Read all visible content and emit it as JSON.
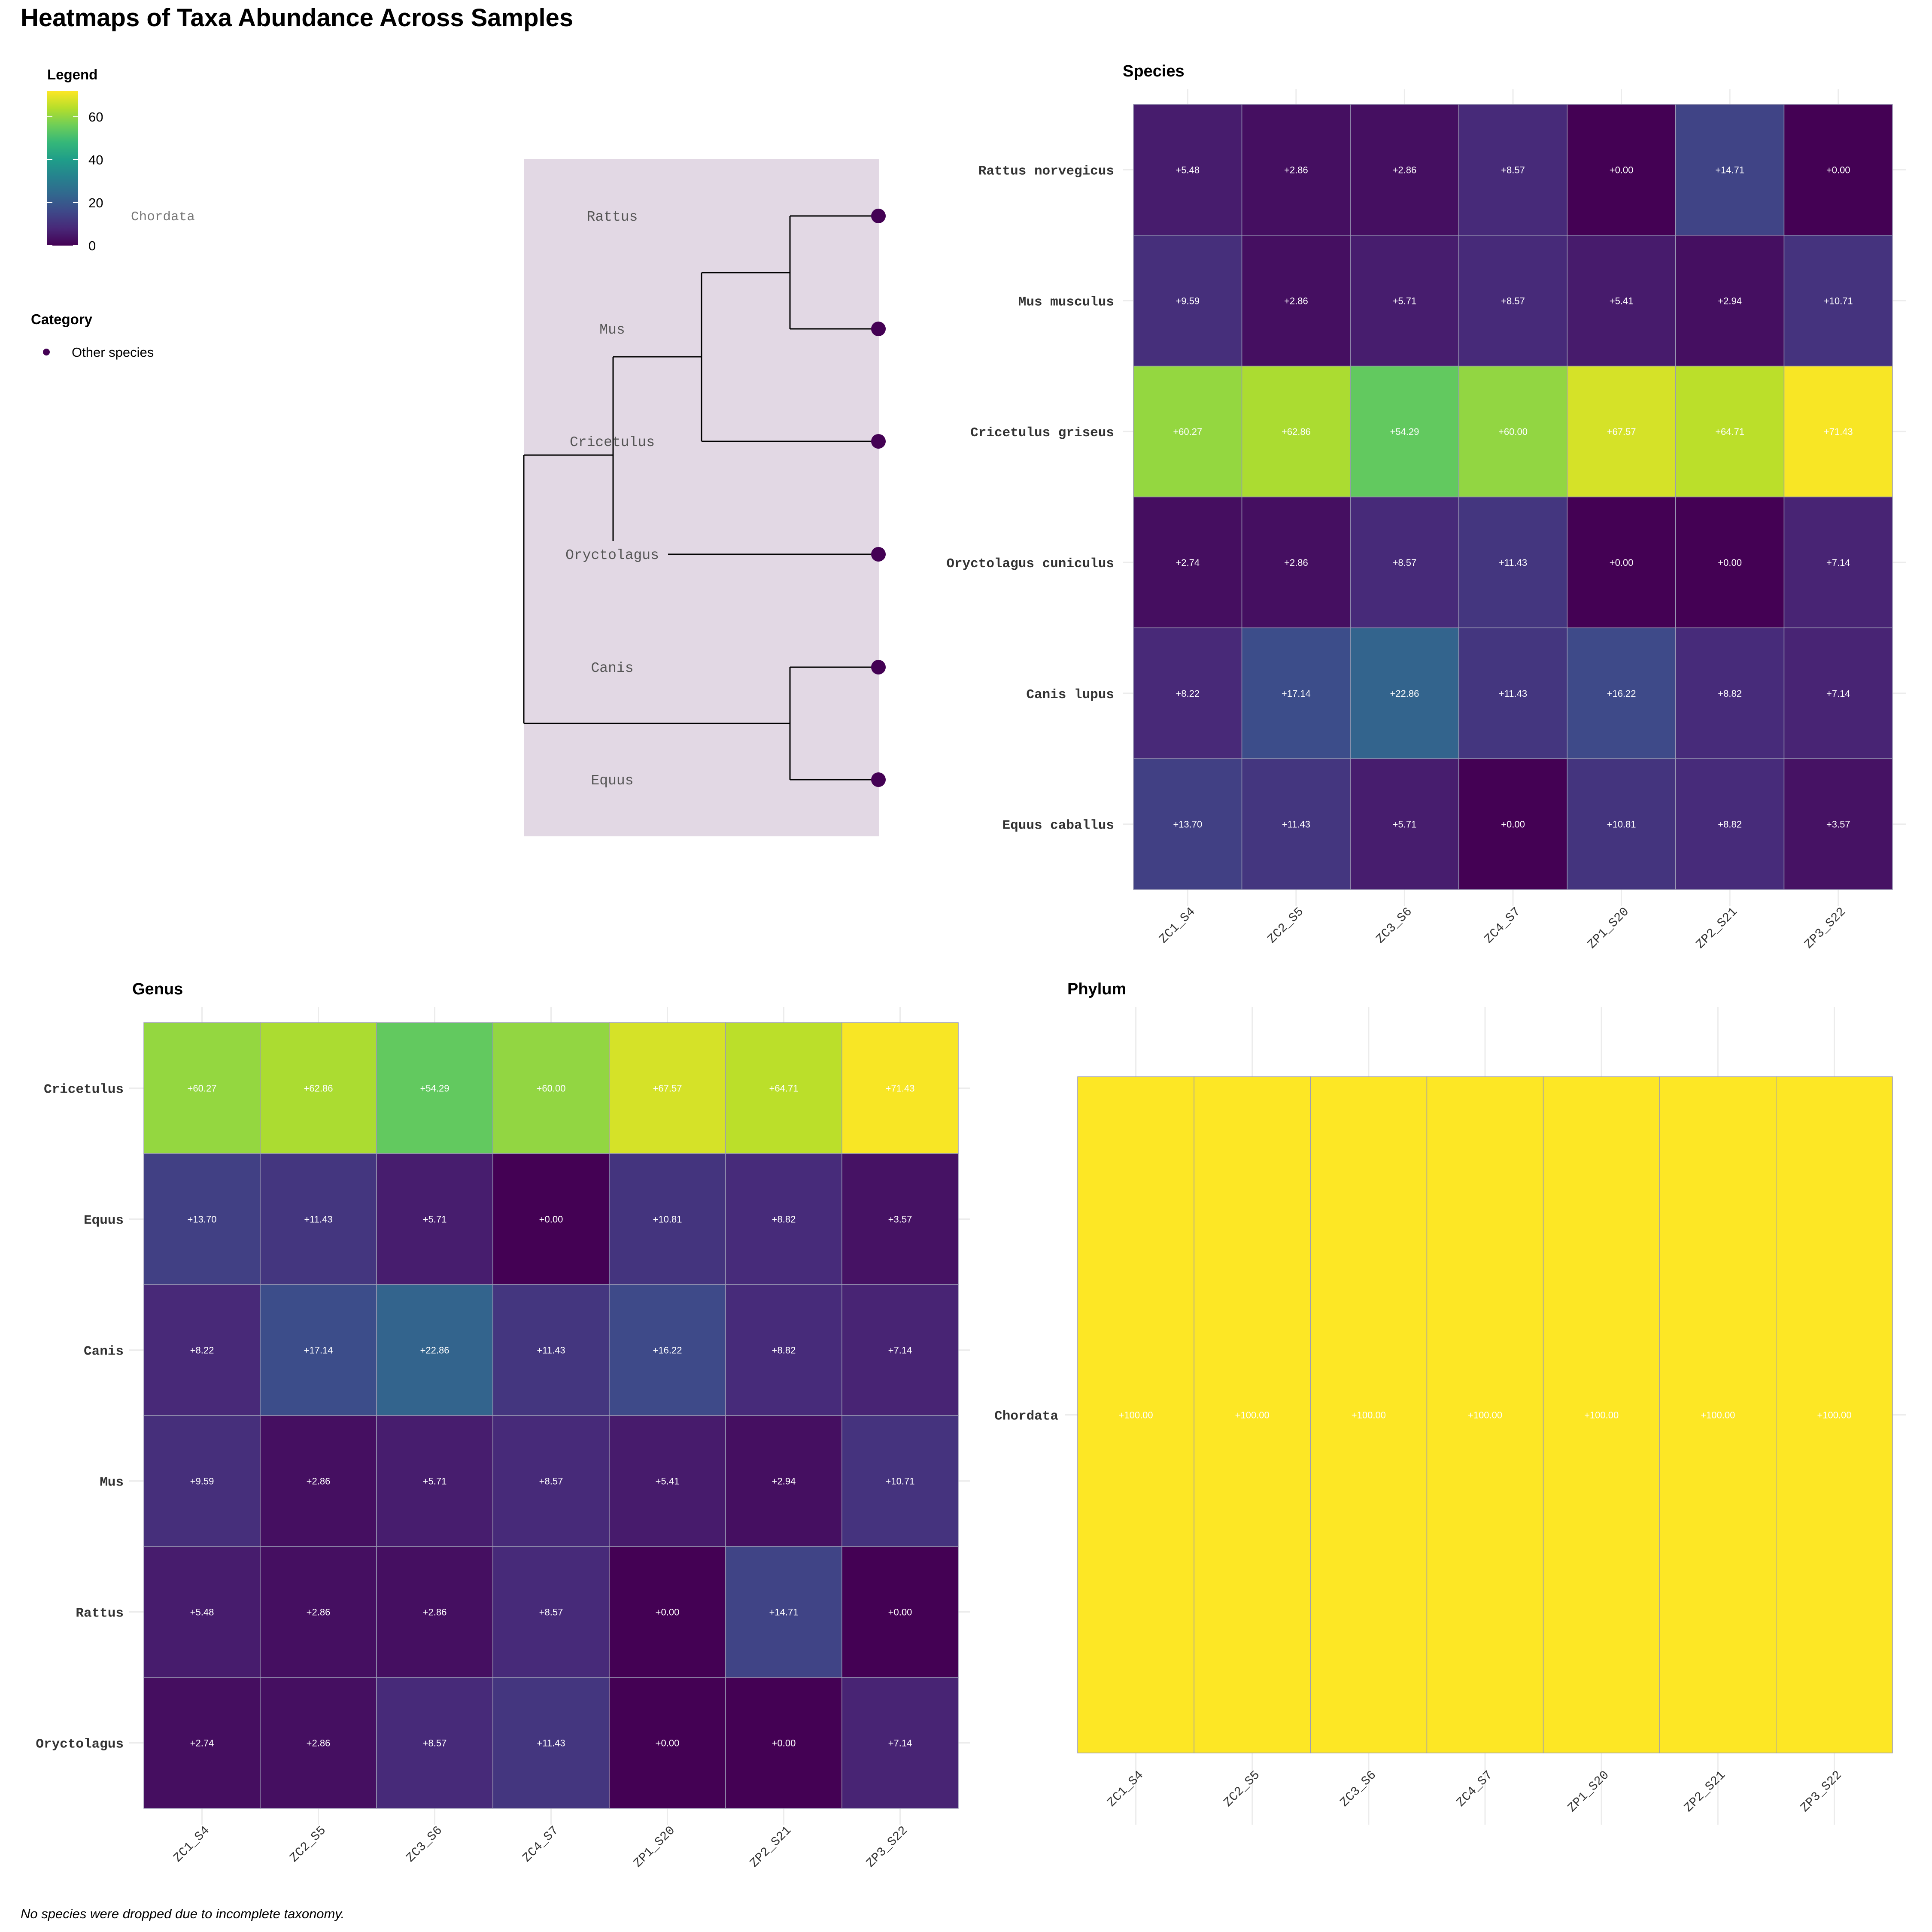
{
  "title": "Heatmaps of Taxa Abundance Across Samples",
  "footer_note": "No species were dropped due to incomplete taxonomy.",
  "legend": {
    "title": "Legend",
    "range": [
      0,
      72
    ],
    "ticks": [
      "0",
      "20",
      "40",
      "60"
    ],
    "tick_values": [
      0,
      20,
      40,
      60
    ],
    "side_label": "Chordata"
  },
  "category_legend": {
    "title": "Category",
    "items": [
      {
        "label": "Other species",
        "color": "#440154"
      }
    ]
  },
  "colors": {
    "viridis": [
      "#440154",
      "#482878",
      "#3e4989",
      "#31688e",
      "#26828e",
      "#1f9e89",
      "#35b779",
      "#6ece58",
      "#b5de2b",
      "#fde725"
    ],
    "tree_background": "#e2d8e4",
    "tree_tip": "#440154",
    "cell_border": "#9a9ab4",
    "grid": "#ececec"
  },
  "tree": {
    "labels": [
      "Rattus",
      "Mus",
      "Cricetulus",
      "Oryctolagus",
      "Canis",
      "Equus"
    ]
  },
  "chart_data": [
    {
      "type": "heatmap",
      "panel": "species",
      "title": "Species",
      "x_categories": [
        "ZC1_S4",
        "ZC2_S5",
        "ZC3_S6",
        "ZC4_S7",
        "ZP1_S20",
        "ZP2_S21",
        "ZP3_S22"
      ],
      "y_categories": [
        "Rattus norvegicus",
        "Mus musculus",
        "Cricetulus griseus",
        "Oryctolagus cuniculus",
        "Canis lupus",
        "Equus caballus"
      ],
      "values": [
        [
          5.48,
          2.86,
          2.86,
          8.57,
          0.0,
          14.71,
          0.0
        ],
        [
          9.59,
          2.86,
          5.71,
          8.57,
          5.41,
          2.94,
          10.71
        ],
        [
          60.27,
          62.86,
          54.29,
          60.0,
          67.57,
          64.71,
          71.43
        ],
        [
          2.74,
          2.86,
          8.57,
          11.43,
          0.0,
          0.0,
          7.14
        ],
        [
          8.22,
          17.14,
          22.86,
          11.43,
          16.22,
          8.82,
          7.14
        ],
        [
          13.7,
          11.43,
          5.71,
          0.0,
          10.81,
          8.82,
          3.57
        ]
      ],
      "labels": [
        [
          "+5.48",
          "+2.86",
          "+2.86",
          "+8.57",
          "+0.00",
          "+14.71",
          "+0.00"
        ],
        [
          "+9.59",
          "+2.86",
          "+5.71",
          "+8.57",
          "+5.41",
          "+2.94",
          "+10.71"
        ],
        [
          "+60.27",
          "+62.86",
          "+54.29",
          "+60.00",
          "+67.57",
          "+64.71",
          "+71.43"
        ],
        [
          "+2.74",
          "+2.86",
          "+8.57",
          "+11.43",
          "+0.00",
          "+0.00",
          "+7.14"
        ],
        [
          "+8.22",
          "+17.14",
          "+22.86",
          "+11.43",
          "+16.22",
          "+8.82",
          "+7.14"
        ],
        [
          "+13.70",
          "+11.43",
          "+5.71",
          "+0.00",
          "+10.81",
          "+8.82",
          "+3.57"
        ]
      ]
    },
    {
      "type": "heatmap",
      "panel": "genus",
      "title": "Genus",
      "x_categories": [
        "ZC1_S4",
        "ZC2_S5",
        "ZC3_S6",
        "ZC4_S7",
        "ZP1_S20",
        "ZP2_S21",
        "ZP3_S22"
      ],
      "y_categories": [
        "Cricetulus",
        "Equus",
        "Canis",
        "Mus",
        "Rattus",
        "Oryctolagus"
      ],
      "values": [
        [
          60.27,
          62.86,
          54.29,
          60.0,
          67.57,
          64.71,
          71.43
        ],
        [
          13.7,
          11.43,
          5.71,
          0.0,
          10.81,
          8.82,
          3.57
        ],
        [
          8.22,
          17.14,
          22.86,
          11.43,
          16.22,
          8.82,
          7.14
        ],
        [
          9.59,
          2.86,
          5.71,
          8.57,
          5.41,
          2.94,
          10.71
        ],
        [
          5.48,
          2.86,
          2.86,
          8.57,
          0.0,
          14.71,
          0.0
        ],
        [
          2.74,
          2.86,
          8.57,
          11.43,
          0.0,
          0.0,
          7.14
        ]
      ],
      "labels": [
        [
          "+60.27",
          "+62.86",
          "+54.29",
          "+60.00",
          "+67.57",
          "+64.71",
          "+71.43"
        ],
        [
          "+13.70",
          "+11.43",
          "+5.71",
          "+0.00",
          "+10.81",
          "+8.82",
          "+3.57"
        ],
        [
          "+8.22",
          "+17.14",
          "+22.86",
          "+11.43",
          "+16.22",
          "+8.82",
          "+7.14"
        ],
        [
          "+9.59",
          "+2.86",
          "+5.71",
          "+8.57",
          "+5.41",
          "+2.94",
          "+10.71"
        ],
        [
          "+5.48",
          "+2.86",
          "+2.86",
          "+8.57",
          "+0.00",
          "+14.71",
          "+0.00"
        ],
        [
          "+2.74",
          "+2.86",
          "+8.57",
          "+11.43",
          "+0.00",
          "+0.00",
          "+7.14"
        ]
      ]
    },
    {
      "type": "heatmap",
      "panel": "phylum",
      "title": "Phylum",
      "x_categories": [
        "ZC1_S4",
        "ZC2_S5",
        "ZC3_S6",
        "ZC4_S7",
        "ZP1_S20",
        "ZP2_S21",
        "ZP3_S22"
      ],
      "y_categories": [
        "Chordata"
      ],
      "values": [
        [
          100.0,
          100.0,
          100.0,
          100.0,
          100.0,
          100.0,
          100.0
        ]
      ],
      "labels": [
        [
          "+100.00",
          "+100.00",
          "+100.00",
          "+100.00",
          "+100.00",
          "+100.00",
          "+100.00"
        ]
      ]
    }
  ]
}
